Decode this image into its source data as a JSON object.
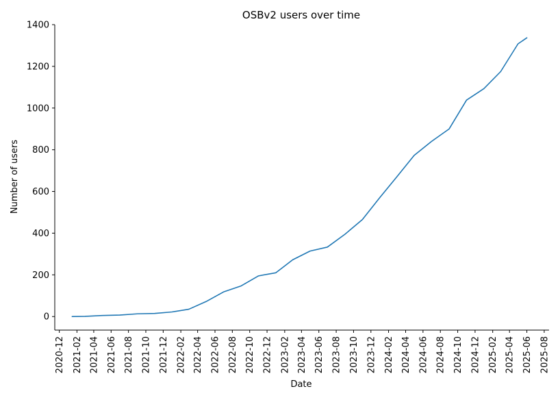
{
  "chart_data": {
    "type": "line",
    "title": "OSBv2 users over time",
    "xlabel": "Date",
    "ylabel": "Number of users",
    "xlim": [
      "2020-11-15",
      "2025-08-18"
    ],
    "ylim": [
      -65,
      1400
    ],
    "grid": false,
    "line_color": "#1f77b4",
    "x_ticks": [
      "2020-12",
      "2021-02",
      "2021-04",
      "2021-06",
      "2021-08",
      "2021-10",
      "2021-12",
      "2022-02",
      "2022-04",
      "2022-06",
      "2022-08",
      "2022-10",
      "2022-12",
      "2023-02",
      "2023-04",
      "2023-06",
      "2023-08",
      "2023-10",
      "2023-12",
      "2024-02",
      "2024-04",
      "2024-06",
      "2024-08",
      "2024-10",
      "2024-12",
      "2025-02",
      "2025-04",
      "2025-06",
      "2025-08"
    ],
    "y_ticks": [
      0,
      200,
      400,
      600,
      800,
      1000,
      1200,
      1400
    ],
    "series": [
      {
        "x": [
          "2021-01-15",
          "2021-03-01",
          "2021-05-01",
          "2021-07-01",
          "2021-09-01",
          "2021-11-01",
          "2022-01-01",
          "2022-03-01",
          "2022-05-01",
          "2022-07-01",
          "2022-09-01",
          "2022-11-01",
          "2023-01-01",
          "2023-03-01",
          "2023-05-01",
          "2023-07-01",
          "2023-09-01",
          "2023-11-01",
          "2024-01-01",
          "2024-03-01",
          "2024-05-01",
          "2024-07-01",
          "2024-09-01",
          "2024-11-01",
          "2025-01-01",
          "2025-03-01",
          "2025-05-01",
          "2025-06-01"
        ],
        "values": [
          0,
          1,
          5,
          7,
          13,
          15,
          22,
          35,
          72,
          118,
          147,
          195,
          210,
          272,
          314,
          333,
          395,
          465,
          570,
          670,
          773,
          840,
          900,
          1038,
          1093,
          1175,
          1308,
          1337
        ]
      }
    ]
  }
}
